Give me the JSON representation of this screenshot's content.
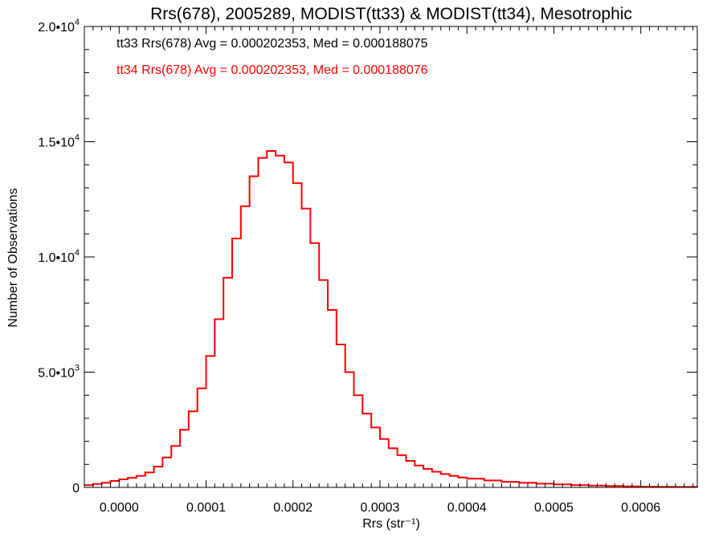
{
  "chart_data": {
    "type": "line",
    "title": "Rrs(678), 2005289, MODIST(tt33) & MODIST(tt34), Mesotrophic",
    "xlabel": "Rrs (str⁻¹)",
    "ylabel": "Number of Observations",
    "xlim": [
      -4e-05,
      0.000665
    ],
    "ylim": [
      0,
      20000
    ],
    "x_ticks": [
      {
        "value": 0.0,
        "label": "0.0000"
      },
      {
        "value": 0.0001,
        "label": "0.0001"
      },
      {
        "value": 0.0002,
        "label": "0.0002"
      },
      {
        "value": 0.0003,
        "label": "0.0003"
      },
      {
        "value": 0.0004,
        "label": "0.0004"
      },
      {
        "value": 0.0005,
        "label": "0.0005"
      },
      {
        "value": 0.0006,
        "label": "0.0006"
      }
    ],
    "y_ticks": [
      {
        "value": 0,
        "label": "0"
      },
      {
        "value": 5000,
        "label": "5.0•",
        "exp_base": "10",
        "exp": "3"
      },
      {
        "value": 10000,
        "label": "1.0•",
        "exp_base": "10",
        "exp": "4"
      },
      {
        "value": 15000,
        "label": "1.5•",
        "exp_base": "10",
        "exp": "4"
      },
      {
        "value": 20000,
        "label": "2.0•",
        "exp_base": "10",
        "exp": "4"
      }
    ],
    "annotations": [
      {
        "text": "tt33 Rrs(678) Avg = 0.000202353, Med = 0.000188075",
        "color": "#000000"
      },
      {
        "text": "tt34 Rrs(678) Avg = 0.000202353, Med = 0.000188076",
        "color": "#ff0000"
      }
    ],
    "grid": false,
    "series": [
      {
        "color": "#ff0000",
        "x": [
          -4e-05,
          -3e-05,
          -2e-05,
          -1e-05,
          0.0,
          1e-05,
          2e-05,
          3e-05,
          4e-05,
          5e-05,
          6e-05,
          7e-05,
          8e-05,
          9e-05,
          0.0001,
          0.00011,
          0.00012,
          0.00013,
          0.00014,
          0.00015,
          0.00016,
          0.00017,
          0.00018,
          0.00019,
          0.0002,
          0.00021,
          0.00022,
          0.00023,
          0.00024,
          0.00025,
          0.00026,
          0.00027,
          0.00028,
          0.00029,
          0.0003,
          0.00031,
          0.00032,
          0.00033,
          0.00034,
          0.00035,
          0.00036,
          0.00037,
          0.00038,
          0.00039,
          0.0004,
          0.00042,
          0.00044,
          0.00046,
          0.00048,
          0.0005,
          0.00052,
          0.00054,
          0.00056,
          0.00058,
          0.0006,
          0.00062,
          0.00064,
          0.000665
        ],
        "y": [
          100,
          150,
          200,
          280,
          350,
          420,
          500,
          650,
          900,
          1300,
          1800,
          2500,
          3300,
          4300,
          5700,
          7300,
          9100,
          10800,
          12200,
          13500,
          14300,
          14600,
          14400,
          14100,
          13200,
          12100,
          10600,
          9000,
          7700,
          6200,
          5000,
          4000,
          3200,
          2600,
          2100,
          1700,
          1400,
          1150,
          950,
          800,
          680,
          580,
          500,
          430,
          380,
          300,
          240,
          200,
          160,
          130,
          100,
          80,
          60,
          45,
          35,
          25,
          20,
          15
        ]
      }
    ]
  }
}
